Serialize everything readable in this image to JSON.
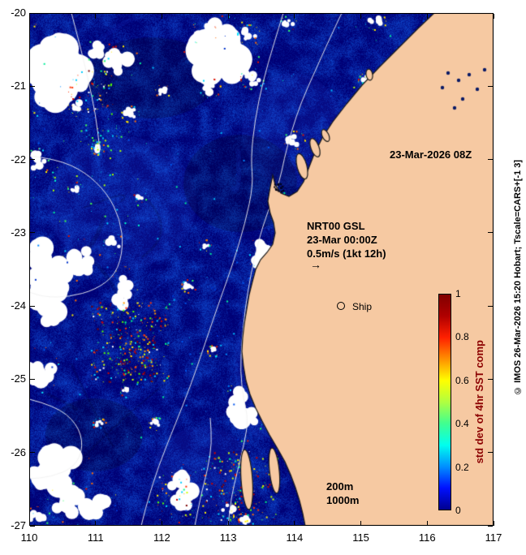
{
  "figure": {
    "title_date": "23-Mar-2026 08Z",
    "overlay": {
      "line1": "NRT00 GSL",
      "line2": "23-Mar 00:00Z",
      "line3": "0.5m/s (1kt 12h)",
      "arrow": "→"
    },
    "ship_label": "Ship",
    "depth_labels": {
      "d200": "200m",
      "d1000": "1000m"
    },
    "copyright": "© IMOS 26-Mar-2026 15:20 Hobart; Tscale=CARS+[-1 3]",
    "colors": {
      "background": "#ffffff",
      "land": "#f6c9a2",
      "coastline": "#1a1a1a",
      "ocean_deep": "#000080",
      "cloud": "#ffffff",
      "contour": "#f0f0f0"
    }
  },
  "axes": {
    "x_ticks": [
      "110",
      "111",
      "112",
      "113",
      "114",
      "115",
      "116",
      "117"
    ],
    "y_ticks": [
      "-20",
      "-21",
      "-22",
      "-23",
      "-24",
      "-25",
      "-26",
      "-27"
    ]
  },
  "colorbar": {
    "ticks": [
      "1",
      "0.8",
      "0.6",
      "0.4",
      "0.2",
      "0"
    ],
    "label": "std dev of 4hr SST comp",
    "label_color": "#8b0000",
    "stops_bottom_to_top": [
      "#00008f",
      "#0010ff",
      "#0090ff",
      "#00ffee",
      "#40ff90",
      "#b0ff40",
      "#ffff00",
      "#ff9000",
      "#ff2000",
      "#b00000",
      "#800000"
    ]
  },
  "chart_data": {
    "type": "heatmap",
    "title": "23-Mar-2026 08Z",
    "x_axis": {
      "ticks": [
        110,
        111,
        112,
        113,
        114,
        115,
        116,
        117
      ],
      "range": [
        110,
        117
      ]
    },
    "y_axis": {
      "ticks": [
        -20,
        -21,
        -22,
        -23,
        -24,
        -25,
        -26,
        -27
      ],
      "range": [
        -27,
        -20
      ]
    },
    "colorbar": {
      "label": "std dev of 4hr SST comp",
      "range": [
        0,
        1
      ],
      "ticks": [
        0,
        0.2,
        0.4,
        0.6,
        0.8,
        1
      ],
      "colormap": "jet"
    },
    "field_summary": "Std dev of 4hr SST composite off the Western Australia coast; ocean mostly 0-0.15 (dark blue) with speckled higher values 0.3-1.0 clustered near cloud edges; white patches = cloud/no data; land masked in tan; white bathymetry contours (200m, 1000m)",
    "annotations": [
      "23-Mar-2026 08Z",
      "NRT00 GSL",
      "23-Mar 00:00Z",
      "0.5m/s (1kt 12h)",
      "Ship",
      "200m",
      "1000m"
    ],
    "contour_labels": [
      "200m",
      "1000m"
    ]
  }
}
